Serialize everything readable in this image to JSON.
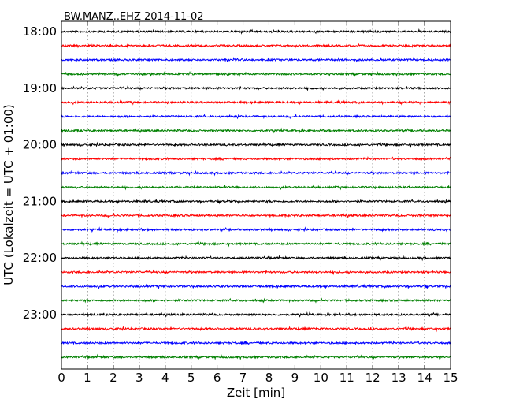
{
  "chart_data": {
    "type": "line",
    "title": "BW.MANZ..EHZ 2014-11-02",
    "xlabel": "Zeit  [min]",
    "ylabel": "UTC (Lokalzeit = UTC + 01:00)",
    "xlim": [
      0,
      15
    ],
    "x_ticks": [
      "0",
      "1",
      "2",
      "3",
      "4",
      "5",
      "6",
      "7",
      "8",
      "9",
      "10",
      "11",
      "12",
      "13",
      "14",
      "15"
    ],
    "y_ticks": [
      "18:00",
      "19:00",
      "20:00",
      "21:00",
      "22:00",
      "23:00"
    ],
    "grid": "vertical dotted at each minute",
    "trace_interval_minutes": 15,
    "trace_color_cycle": [
      "#000000",
      "#ff0000",
      "#0000ff",
      "#008000"
    ],
    "series": [
      {
        "values": [
          "18:00"
        ],
        "color": "#000000"
      },
      {
        "values": [
          "18:15"
        ],
        "color": "#ff0000"
      },
      {
        "values": [
          "18:30"
        ],
        "color": "#0000ff"
      },
      {
        "values": [
          "18:45"
        ],
        "color": "#008000"
      },
      {
        "values": [
          "19:00"
        ],
        "color": "#000000"
      },
      {
        "values": [
          "19:15"
        ],
        "color": "#ff0000"
      },
      {
        "values": [
          "19:30"
        ],
        "color": "#0000ff"
      },
      {
        "values": [
          "19:45"
        ],
        "color": "#008000"
      },
      {
        "values": [
          "20:00"
        ],
        "color": "#000000"
      },
      {
        "values": [
          "20:15"
        ],
        "color": "#ff0000"
      },
      {
        "values": [
          "20:30"
        ],
        "color": "#0000ff"
      },
      {
        "values": [
          "20:45"
        ],
        "color": "#008000"
      },
      {
        "values": [
          "21:00"
        ],
        "color": "#000000"
      },
      {
        "values": [
          "21:15"
        ],
        "color": "#ff0000"
      },
      {
        "values": [
          "21:30"
        ],
        "color": "#0000ff"
      },
      {
        "values": [
          "21:45"
        ],
        "color": "#008000"
      },
      {
        "values": [
          "22:00"
        ],
        "color": "#000000"
      },
      {
        "values": [
          "22:15"
        ],
        "color": "#ff0000"
      },
      {
        "values": [
          "22:30"
        ],
        "color": "#0000ff"
      },
      {
        "values": [
          "22:45"
        ],
        "color": "#008000"
      },
      {
        "values": [
          "23:00"
        ],
        "color": "#000000"
      },
      {
        "values": [
          "23:15"
        ],
        "color": "#ff0000"
      },
      {
        "values": [
          "23:30"
        ],
        "color": "#0000ff"
      },
      {
        "values": [
          "23:45"
        ],
        "color": "#008000"
      }
    ]
  }
}
